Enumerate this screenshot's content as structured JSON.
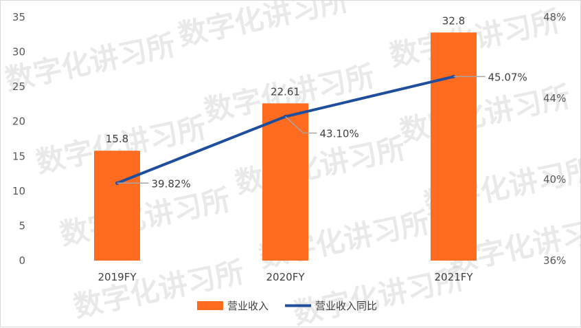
{
  "chart_data": {
    "type": "bar+line",
    "categories": [
      "2019FY",
      "2020FY",
      "2021FY"
    ],
    "series": [
      {
        "name": "营业收入",
        "type": "bar",
        "axis": "left",
        "values": [
          15.8,
          22.61,
          32.8
        ],
        "labels": [
          "15.8",
          "22.61",
          "32.8"
        ],
        "color": "#ff6b1f"
      },
      {
        "name": "营业收入同比",
        "type": "line",
        "axis": "right",
        "values": [
          39.82,
          43.1,
          45.07
        ],
        "labels": [
          "39.82%",
          "43.10%",
          "45.07%"
        ],
        "color": "#1f4e9c"
      }
    ],
    "y_left": {
      "min": 0,
      "max": 35,
      "ticks": [
        "0",
        "5",
        "10",
        "15",
        "20",
        "25",
        "30",
        "35"
      ]
    },
    "y_right": {
      "min": 36,
      "max": 48,
      "ticks": [
        "36%",
        "40%",
        "44%",
        "48%"
      ]
    },
    "grid": false,
    "legend": "bottom",
    "watermark": "数字化讲习所"
  }
}
